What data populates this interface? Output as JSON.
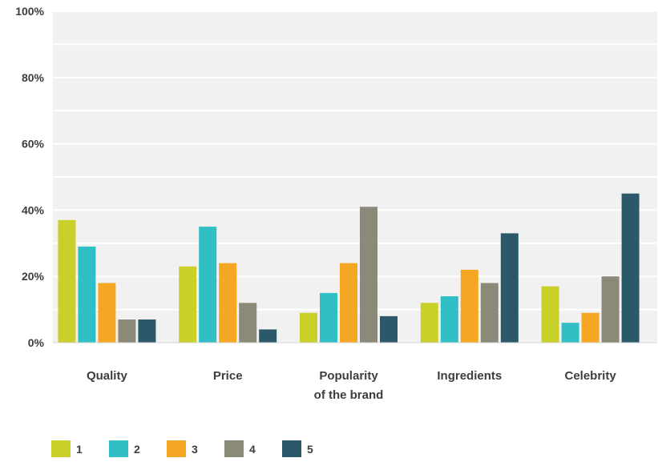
{
  "chart_data": {
    "type": "bar",
    "title": "",
    "xlabel": "",
    "ylabel": "",
    "ylim": [
      0,
      100
    ],
    "yticks": [
      "0%",
      "20%",
      "40%",
      "60%",
      "80%",
      "100%"
    ],
    "grid": true,
    "legend_position": "bottom-left",
    "categories": [
      [
        "Quality"
      ],
      [
        "Price"
      ],
      [
        "Popularity",
        "of the brand"
      ],
      [
        "Ingredients"
      ],
      [
        "Celebrity"
      ]
    ],
    "series": [
      {
        "name": "1",
        "color": "#c9d02a",
        "values": [
          37,
          23,
          9,
          12,
          17
        ]
      },
      {
        "name": "2",
        "color": "#2fbfc4",
        "values": [
          29,
          35,
          15,
          14,
          6
        ]
      },
      {
        "name": "3",
        "color": "#f5a623",
        "values": [
          18,
          24,
          24,
          22,
          9
        ]
      },
      {
        "name": "4",
        "color": "#8b8a78",
        "values": [
          7,
          12,
          41,
          18,
          20
        ]
      },
      {
        "name": "5",
        "color": "#2b5969",
        "values": [
          7,
          4,
          8,
          33,
          45
        ]
      }
    ],
    "background_color": "#f1f1f1",
    "gridline_color": "#ffffff"
  }
}
